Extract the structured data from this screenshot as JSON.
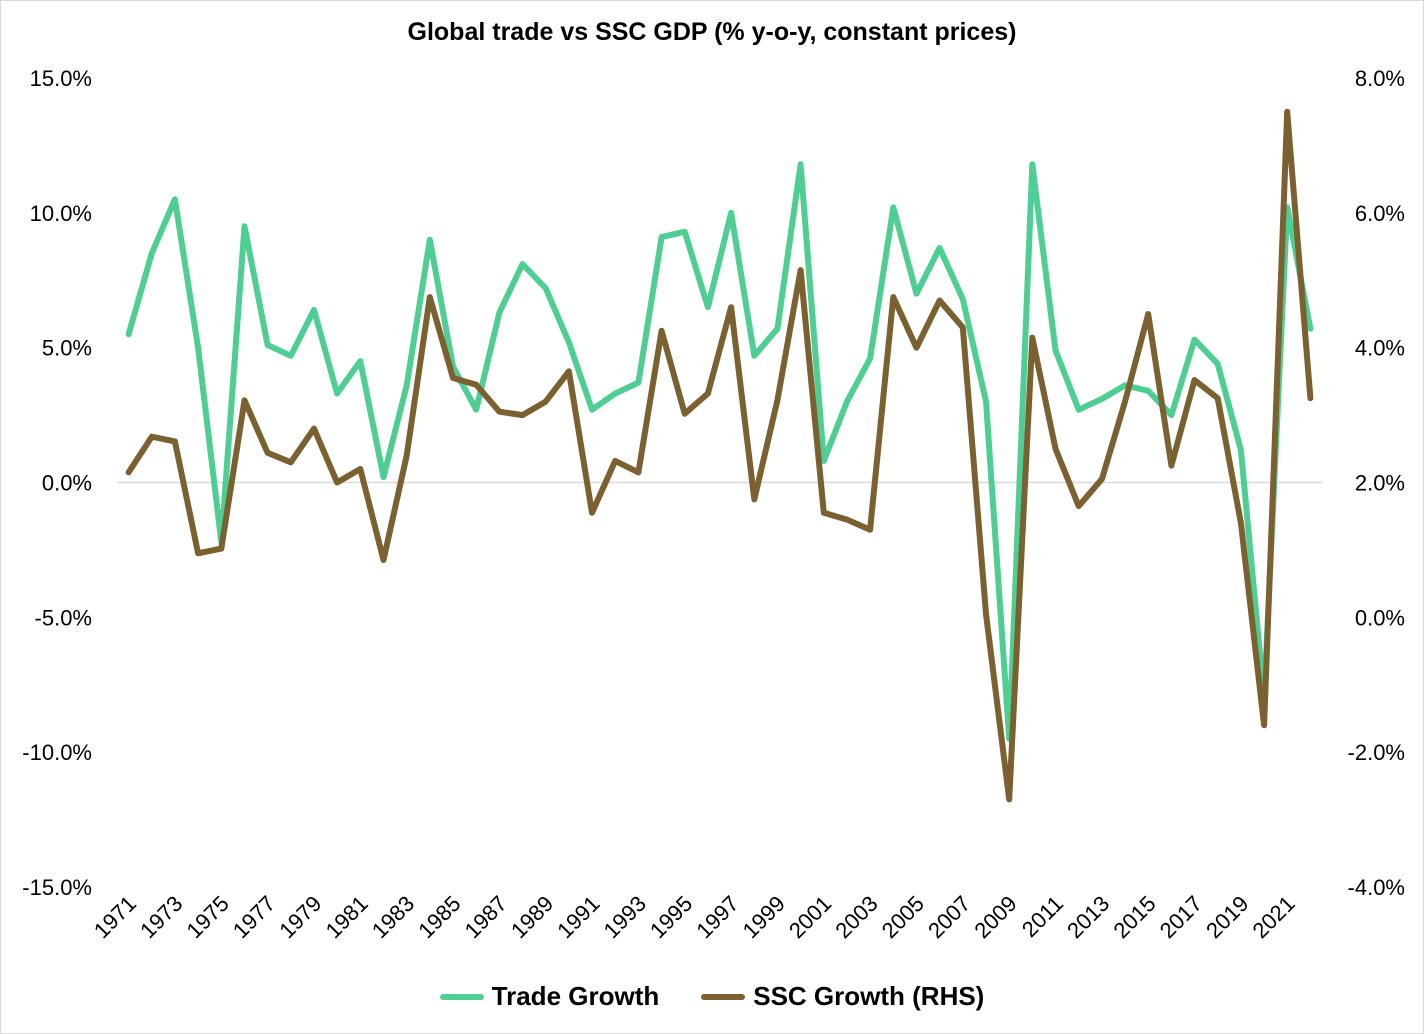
{
  "chart_data": {
    "type": "line",
    "title": "Global trade vs SSC GDP (% y-o-y, constant prices)",
    "x": [
      1971,
      1972,
      1973,
      1974,
      1975,
      1976,
      1977,
      1978,
      1979,
      1980,
      1981,
      1982,
      1983,
      1984,
      1985,
      1986,
      1987,
      1988,
      1989,
      1990,
      1991,
      1992,
      1993,
      1994,
      1995,
      1996,
      1997,
      1998,
      1999,
      2000,
      2001,
      2002,
      2003,
      2004,
      2005,
      2006,
      2007,
      2008,
      2009,
      2010,
      2011,
      2012,
      2013,
      2014,
      2015,
      2016,
      2017,
      2018,
      2019,
      2020,
      2021,
      2022
    ],
    "x_tick_labels": [
      "1971",
      "1973",
      "1975",
      "1977",
      "1979",
      "1981",
      "1983",
      "1985",
      "1987",
      "1989",
      "1991",
      "1993",
      "1995",
      "1997",
      "1999",
      "2001",
      "2003",
      "2005",
      "2007",
      "2009",
      "2011",
      "2013",
      "2015",
      "2017",
      "2019",
      "2021"
    ],
    "left_axis": {
      "min": -15,
      "max": 15,
      "step": 5,
      "tick_labels": [
        "15.0%",
        "10.0%",
        "5.0%",
        "0.0%",
        "-5.0%",
        "-10.0%",
        "-15.0%"
      ]
    },
    "right_axis": {
      "min": -4,
      "max": 8,
      "step": 2,
      "tick_labels": [
        "8.0%",
        "6.0%",
        "4.0%",
        "2.0%",
        "0.0%",
        "-2.0%",
        "-4.0%"
      ]
    },
    "series": [
      {
        "name": "Trade Growth",
        "axis": "left",
        "color": "#4fce93",
        "values": [
          5.5,
          8.5,
          10.5,
          5.0,
          -2.2,
          9.5,
          5.1,
          4.7,
          6.4,
          3.3,
          4.5,
          0.2,
          3.6,
          9.0,
          4.3,
          2.7,
          6.3,
          8.1,
          7.2,
          5.2,
          2.7,
          3.3,
          3.7,
          9.1,
          9.3,
          6.5,
          10.0,
          4.7,
          5.7,
          11.8,
          0.8,
          3.0,
          4.6,
          10.2,
          7.0,
          8.7,
          6.8,
          3.0,
          -9.5,
          11.8,
          4.9,
          2.7,
          3.1,
          3.6,
          3.4,
          2.5,
          5.3,
          4.4,
          1.2,
          -8.0,
          10.2,
          5.7
        ]
      },
      {
        "name": "SSC Growth (RHS)",
        "axis": "right",
        "color": "#7b6130",
        "values": [
          2.15,
          2.68,
          2.61,
          0.95,
          1.02,
          3.22,
          2.44,
          2.3,
          2.8,
          2.0,
          2.2,
          0.85,
          2.4,
          4.75,
          3.55,
          3.45,
          3.05,
          3.0,
          3.2,
          3.65,
          1.55,
          2.32,
          2.15,
          4.25,
          3.02,
          3.32,
          4.6,
          1.75,
          3.22,
          5.15,
          1.55,
          1.45,
          1.3,
          4.75,
          4.0,
          4.7,
          4.3,
          0.05,
          -2.7,
          4.15,
          2.5,
          1.65,
          2.05,
          3.2,
          4.5,
          2.25,
          3.52,
          3.25,
          1.4,
          -1.6,
          7.5,
          3.25
        ]
      }
    ]
  }
}
